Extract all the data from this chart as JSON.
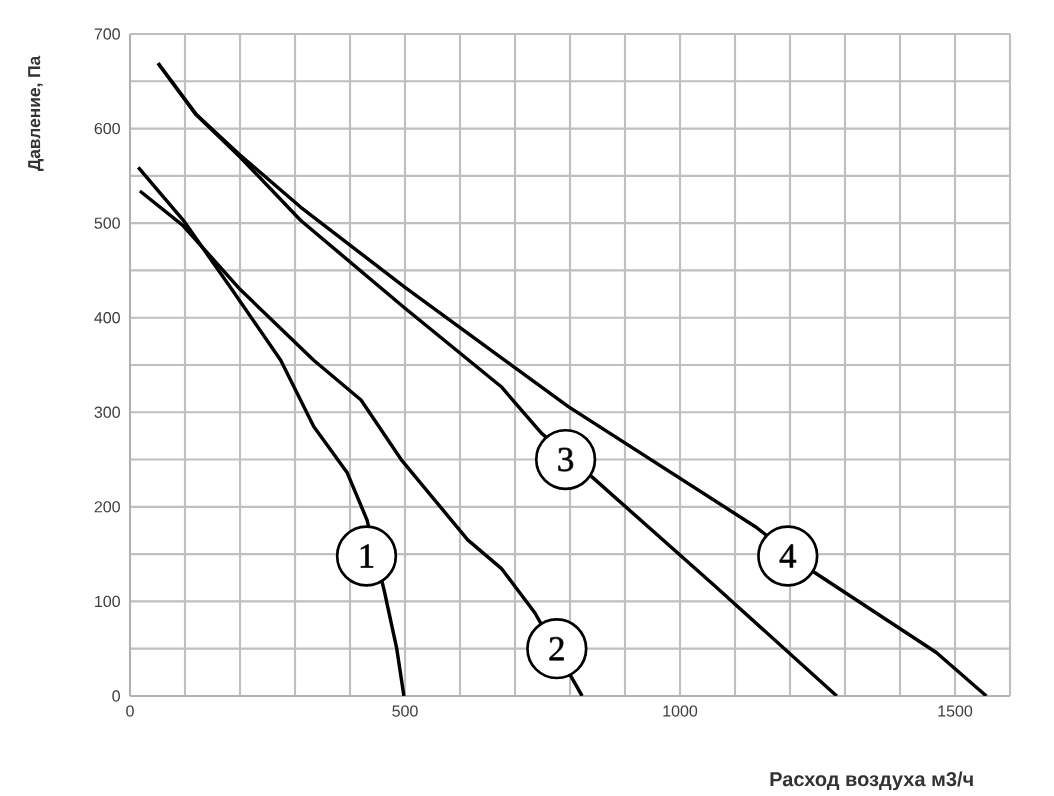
{
  "chart_data": {
    "type": "line",
    "xlabel": "Расход воздуха м3/ч",
    "ylabel": "Давление, Па",
    "xlim": [
      0,
      1600
    ],
    "ylim": [
      0,
      700
    ],
    "xticks": [
      0,
      {
        "value": 100,
        "label": null
      },
      {
        "value": 200,
        "label": null
      },
      {
        "value": 300,
        "label": null
      },
      {
        "value": 400,
        "label": null
      },
      500,
      {
        "value": 600,
        "label": null
      },
      {
        "value": 700,
        "label": null
      },
      {
        "value": 800,
        "label": null
      },
      {
        "value": 900,
        "label": null
      },
      1000,
      {
        "value": 1100,
        "label": null
      },
      {
        "value": 1200,
        "label": null
      },
      {
        "value": 1300,
        "label": null
      },
      {
        "value": 1400,
        "label": null
      },
      1500,
      {
        "value": 1600,
        "label": null
      }
    ],
    "yticks": [
      0,
      {
        "value": 50,
        "label": null
      },
      100,
      {
        "value": 150,
        "label": null
      },
      200,
      {
        "value": 250,
        "label": null
      },
      300,
      {
        "value": 350,
        "label": null
      },
      400,
      {
        "value": 450,
        "label": null
      },
      500,
      {
        "value": 550,
        "label": null
      },
      600,
      {
        "value": 650,
        "label": null
      },
      700
    ],
    "grid": true,
    "marker": "none",
    "line_style": "solid",
    "series": [
      {
        "color": "#000000",
        "x": [
          15,
          97,
          185,
          274,
          334,
          395,
          431,
          462,
          485,
          498
        ],
        "values": [
          559,
          503,
          430,
          355,
          285,
          236,
          186,
          112,
          50,
          0
        ]
      },
      {
        "color": "#000000",
        "x": [
          18,
          97,
          200,
          334,
          420,
          493,
          614,
          675,
          736,
          822
        ],
        "values": [
          534,
          497,
          430,
          355,
          313,
          250,
          165,
          135,
          88,
          0
        ]
      },
      {
        "color": "#000000",
        "x": [
          51,
          120,
          200,
          310,
          500,
          675,
          748,
          845,
          1064,
          1285
        ],
        "values": [
          669,
          615,
          570,
          503,
          410,
          327,
          278,
          229,
          116,
          0
        ]
      },
      {
        "color": "#000000",
        "x": [
          51,
          120,
          200,
          310,
          500,
          797,
          1137,
          1246,
          1466,
          1557
        ],
        "values": [
          669,
          615,
          572,
          517,
          432,
          306,
          179,
          130,
          46,
          0
        ]
      }
    ],
    "annotations": [
      {
        "text": "1",
        "x": 430,
        "y": 148
      },
      {
        "text": "2",
        "x": 776,
        "y": 50
      },
      {
        "text": "3",
        "x": 792,
        "y": 250
      },
      {
        "text": "4",
        "x": 1196,
        "y": 148
      }
    ]
  }
}
